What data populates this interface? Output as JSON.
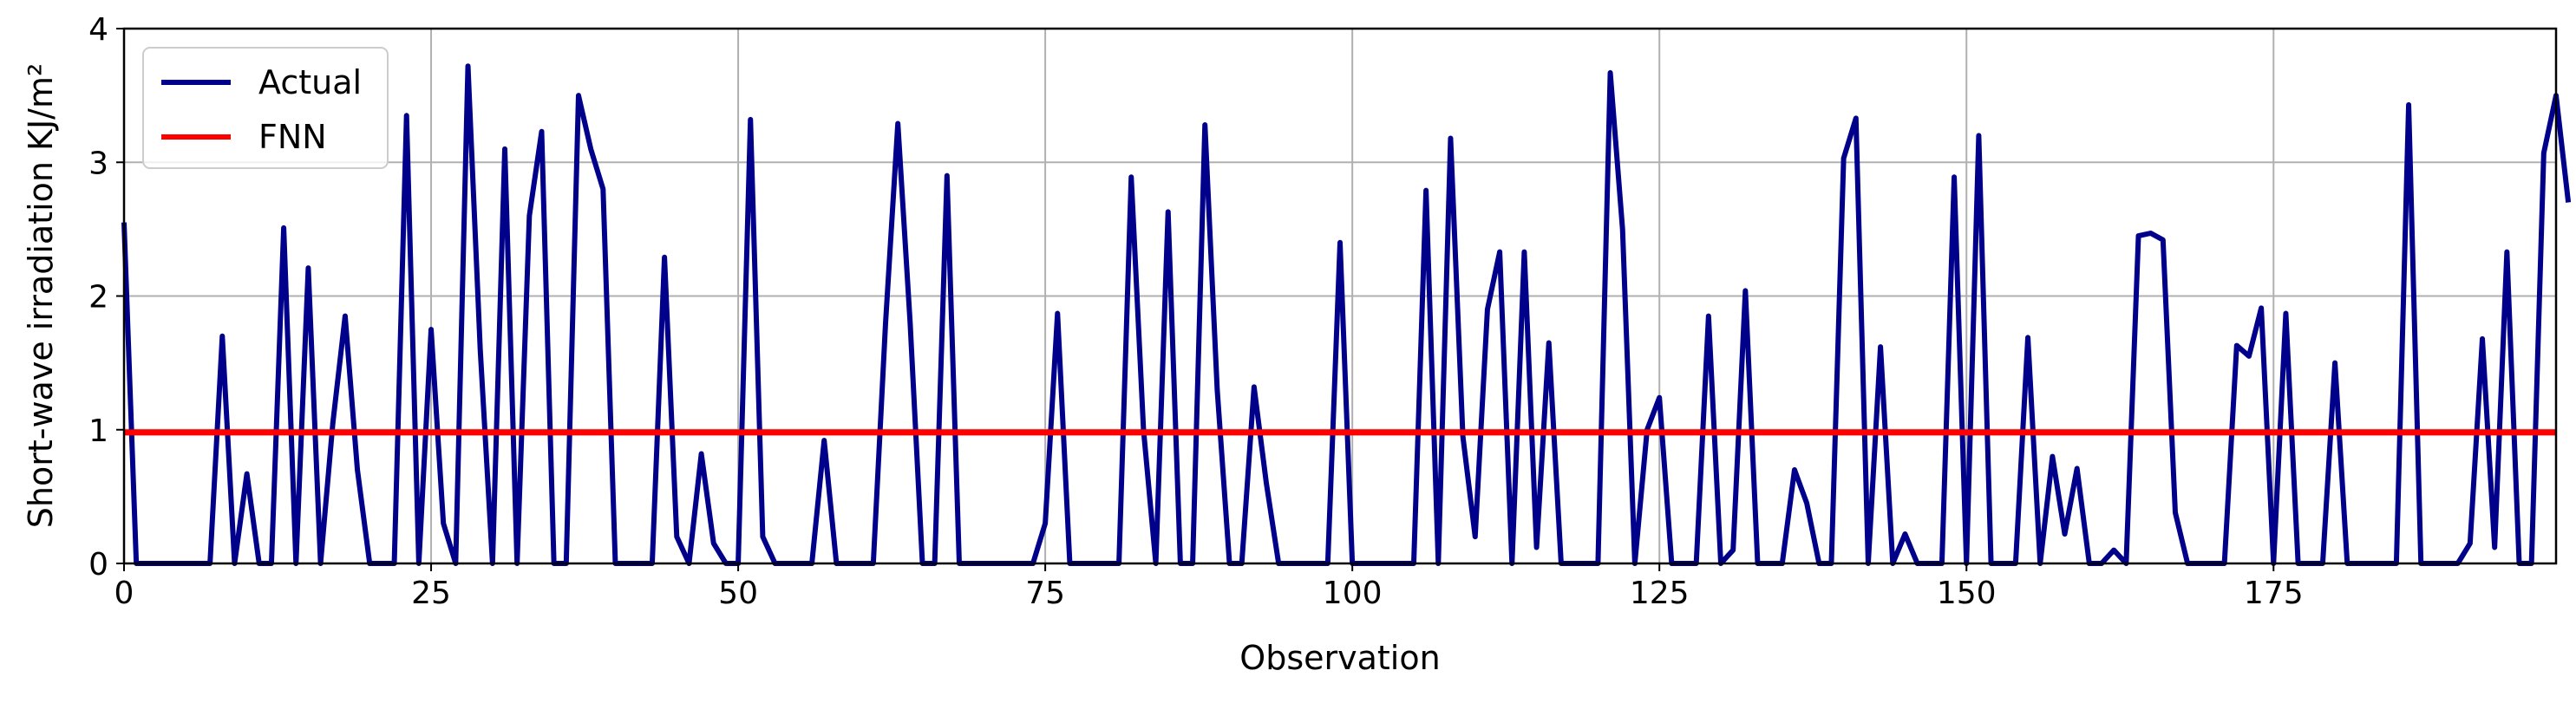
{
  "chart_data": {
    "type": "line",
    "xlabel": "Observation",
    "ylabel": "Short-wave irradiation KJ/m²",
    "xlim": [
      0,
      198
    ],
    "ylim": [
      0,
      4
    ],
    "xticks": [
      0,
      25,
      50,
      75,
      100,
      125,
      150,
      175
    ],
    "yticks": [
      0,
      1,
      2,
      3,
      4
    ],
    "grid": true,
    "legend": {
      "placement": "top-left"
    },
    "series": [
      {
        "name": "Actual",
        "color": "#00008b",
        "values": [
          2.55,
          0,
          0,
          0,
          0,
          0,
          0,
          0,
          1.7,
          0,
          0.67,
          0,
          0,
          2.51,
          0,
          2.21,
          0,
          1.05,
          1.85,
          0.7,
          0,
          0,
          0,
          3.35,
          0,
          1.75,
          0.3,
          0,
          3.72,
          1.6,
          0,
          3.1,
          0,
          2.6,
          3.23,
          0,
          0,
          3.5,
          3.1,
          2.8,
          0,
          0,
          0,
          0,
          2.29,
          0.2,
          0,
          0.82,
          0.15,
          0,
          0,
          3.32,
          0.2,
          0,
          0,
          0,
          0,
          0.92,
          0,
          0,
          0,
          0,
          1.8,
          3.29,
          1.8,
          0,
          0,
          2.9,
          0,
          0,
          0,
          0,
          0,
          0,
          0,
          0.3,
          1.87,
          0,
          0,
          0,
          0,
          0,
          2.89,
          1,
          0,
          2.63,
          0,
          0,
          3.28,
          1.3,
          0,
          0,
          1.32,
          0.6,
          0,
          0,
          0,
          0,
          0,
          2.4,
          0,
          0,
          0,
          0,
          0,
          0,
          2.79,
          0,
          3.18,
          0.95,
          0.2,
          1.9,
          2.33,
          0,
          2.33,
          0.12,
          1.65,
          0,
          0,
          0,
          0,
          3.67,
          2.5,
          0,
          1,
          1.24,
          0,
          0,
          0,
          1.85,
          0,
          0.1,
          2.04,
          0,
          0,
          0,
          0.7,
          0.45,
          0,
          0,
          3.03,
          3.33,
          0,
          1.62,
          0,
          0.22,
          0,
          0,
          0,
          2.89,
          0,
          3.2,
          0,
          0,
          0,
          1.69,
          0,
          0.8,
          0.22,
          0.71,
          0,
          0,
          0.1,
          0,
          2.45,
          2.47,
          2.42,
          0.38,
          0,
          0,
          0,
          0,
          1.63,
          1.55,
          1.91,
          0,
          1.87,
          0,
          0,
          0,
          1.5,
          0,
          0,
          0,
          0,
          0,
          3.43,
          0,
          0,
          0,
          0,
          0.15,
          1.68,
          0.12,
          2.33,
          0,
          0,
          3.07,
          3.5,
          2.7
        ]
      },
      {
        "name": "FNN",
        "color": "#ff0000",
        "values": [
          0.98,
          0.98
        ]
      }
    ]
  }
}
